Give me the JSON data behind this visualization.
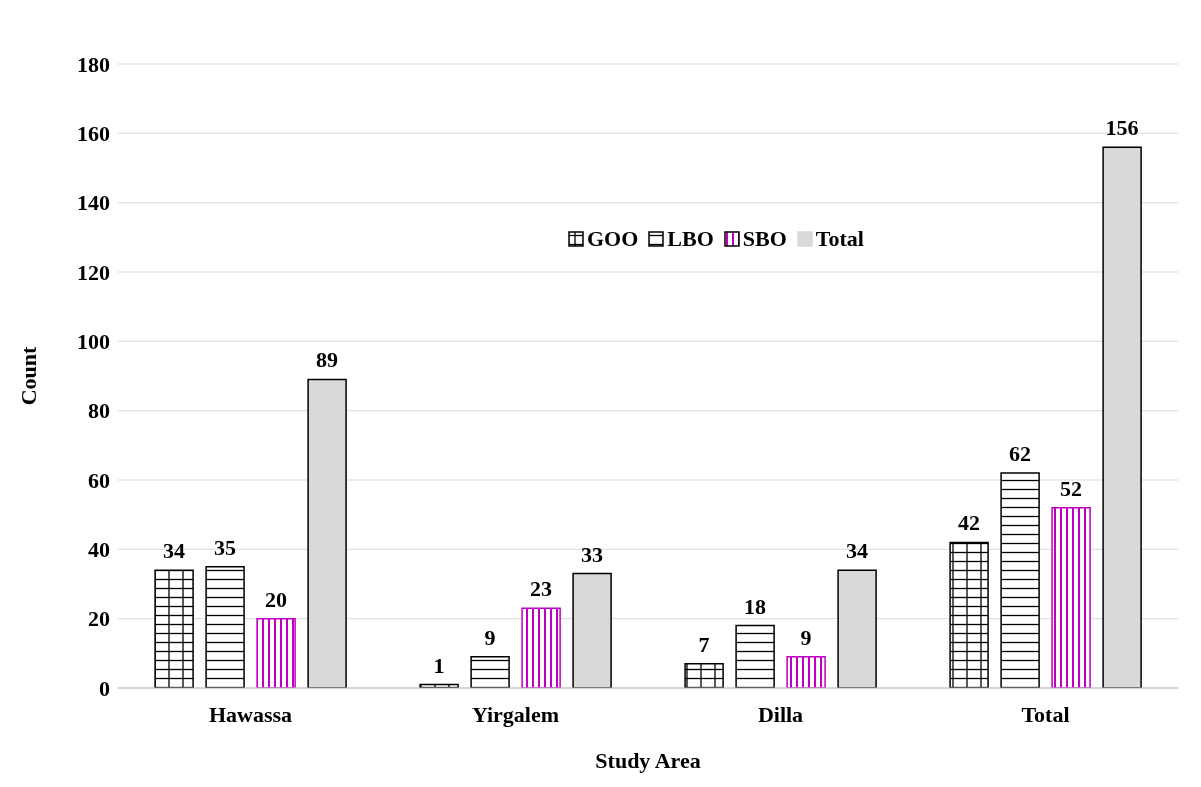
{
  "chart_data": {
    "type": "bar",
    "xlabel": "Study Area",
    "ylabel": "Count",
    "categories": [
      "Hawassa",
      "Yirgalem",
      "Dilla",
      "Total"
    ],
    "series": [
      {
        "name": "GOO",
        "color": "#000000",
        "values": [
          34,
          1,
          7,
          42
        ]
      },
      {
        "name": "LBO",
        "color": "#000000",
        "values": [
          35,
          9,
          18,
          62
        ]
      },
      {
        "name": "SBO",
        "color": "#c000c0",
        "values": [
          20,
          23,
          9,
          52
        ]
      },
      {
        "name": "Total",
        "color": "#d9d9d9",
        "values": [
          89,
          33,
          34,
          156
        ]
      }
    ],
    "ylim": [
      0,
      180
    ],
    "yticks": [
      0,
      20,
      40,
      60,
      80,
      100,
      120,
      140,
      160,
      180
    ],
    "grid": "y",
    "legend": "top",
    "data_labels": true
  }
}
